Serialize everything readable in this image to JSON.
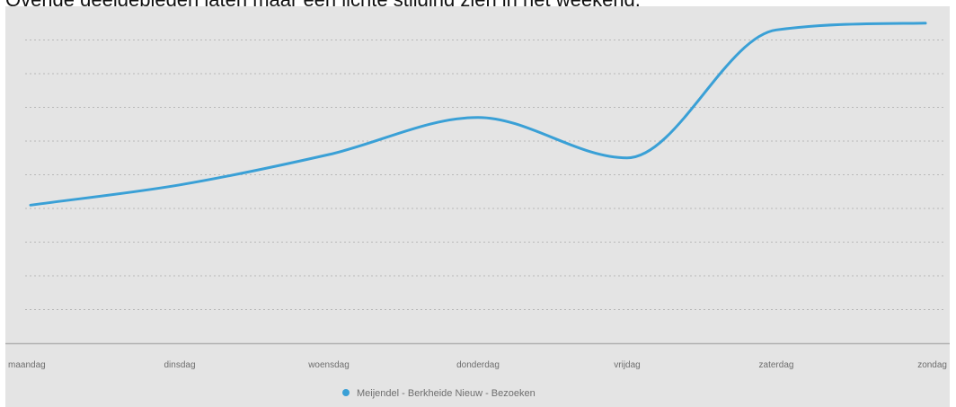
{
  "caption": "Overige deelgebieden laten maar een lichte stijging zien in het weekend.",
  "colors": {
    "panel": "#e4e4e4",
    "series": "#3aa0d6",
    "grid": "#b9b9b9",
    "axis": "#b0b0b0"
  },
  "chart_data": {
    "type": "line",
    "title": "",
    "xlabel": "",
    "ylabel": "",
    "categories": [
      "maandag",
      "dinsdag",
      "woensdag",
      "donderdag",
      "vrijdag",
      "zaterdag",
      "zondag"
    ],
    "ylim": [
      0,
      10
    ],
    "y_tick_labels_shown": false,
    "grid": true,
    "legend_position": "bottom-center",
    "series": [
      {
        "name": "Meijendel - Berkheide Nieuw - Bezoeken",
        "values": [
          4.1,
          4.7,
          5.6,
          6.7,
          5.5,
          9.3,
          9.5
        ]
      }
    ]
  }
}
